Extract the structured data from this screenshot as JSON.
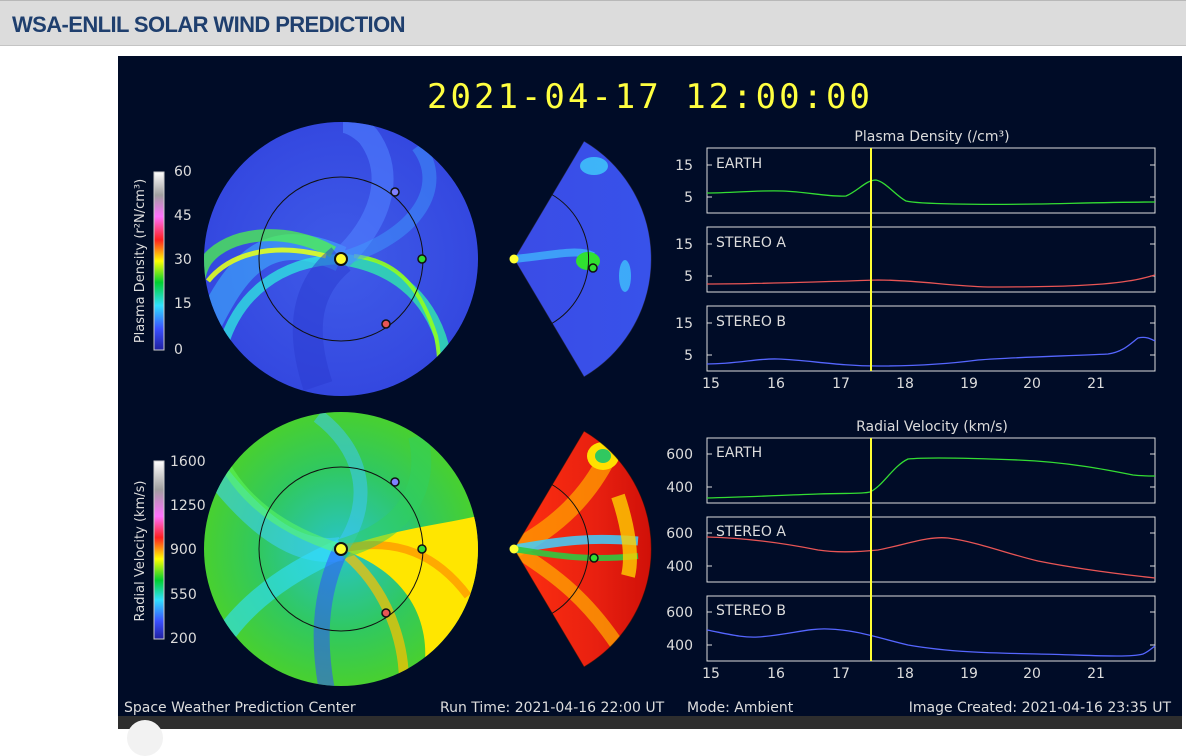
{
  "page": {
    "title": "WSA-ENLIL SOLAR WIND PREDICTION"
  },
  "timestamp": "2021-04-17 12:00:00",
  "colorbars": {
    "density": {
      "label": "Plasma Density (r²N/cm³)",
      "ticks": [
        "60",
        "45",
        "30",
        "15",
        "0"
      ]
    },
    "velocity": {
      "label": "Radial Velocity (km/s)",
      "ticks": [
        "1600",
        "1250",
        "900",
        "550",
        "200"
      ]
    }
  },
  "panels": {
    "density_title": "Plasma Density (/cm³)",
    "velocity_title": "Radial Velocity (km/s)",
    "density_yticks": [
      "15",
      "5"
    ],
    "velocity_yticks": [
      "600",
      "400"
    ],
    "xticks": [
      "15",
      "16",
      "17",
      "18",
      "19",
      "20",
      "21"
    ],
    "spacecraft": [
      "EARTH",
      "STEREO A",
      "STEREO B"
    ]
  },
  "colors": {
    "background": "#000c27",
    "earth": "#33dd33",
    "stereo_a": "#e85555",
    "stereo_b": "#5566ff",
    "time_marker": "#ffff33",
    "timestamp": "#ffff40",
    "header_title": "#1f3f6e"
  },
  "footer": {
    "center": "Space Weather Prediction Center",
    "run_time": "Run Time: 2021-04-16 22:00 UT",
    "mode": "Mode: Ambient",
    "created": "Image Created: 2021-04-16 23:35 UT"
  },
  "icons": {
    "media_control": "play-circle-icon"
  }
}
